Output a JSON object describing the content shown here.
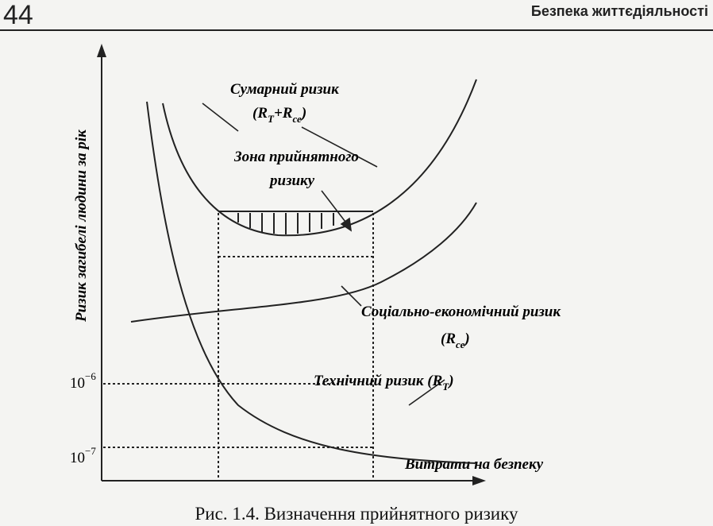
{
  "header": {
    "page_number": "44",
    "title": "Безпека життєдіяльності"
  },
  "figure": {
    "y_axis_label": "Ризик загибелі людини за рік",
    "x_axis_label": "Витрати на безпеку",
    "y_ticks": [
      {
        "base": "10",
        "exp": "−6"
      },
      {
        "base": "10",
        "exp": "−7"
      }
    ],
    "labels": {
      "total_risk": "Сумарний ризик",
      "total_formula": [
        "(R",
        "Т",
        "+R",
        "се",
        ")"
      ],
      "zone_line1": "Зона прийнятного",
      "zone_line2": "ризику",
      "socio_risk": "Соціально-економічний ризик",
      "socio_formula": [
        "(R",
        "се",
        ")"
      ],
      "tech_risk": [
        "Технічний ризик (R",
        "Т",
        ")"
      ]
    },
    "caption": "Рис. 1.4. Визначення прийнятного ризику"
  }
}
